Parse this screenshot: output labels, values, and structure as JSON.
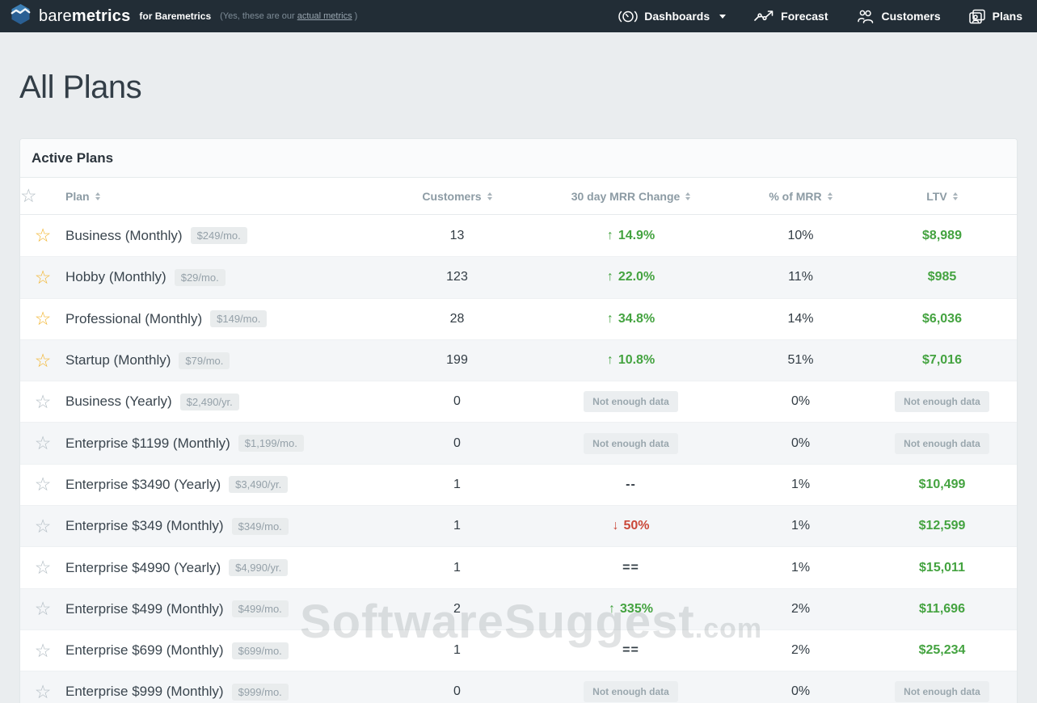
{
  "navbar": {
    "brand": {
      "bare": "bare",
      "metrics": "metrics",
      "for_text": "for Baremetrics",
      "note_prefix": "(Yes, these are our ",
      "note_link": "actual metrics",
      "note_suffix": " )"
    },
    "items": [
      {
        "label": "Dashboards",
        "icon": "dashboards-icon",
        "has_caret": true
      },
      {
        "label": "Forecast",
        "icon": "forecast-icon",
        "has_caret": false
      },
      {
        "label": "Customers",
        "icon": "customers-icon",
        "has_caret": false
      },
      {
        "label": "Plans",
        "icon": "plans-icon",
        "has_caret": false
      }
    ]
  },
  "page": {
    "title": "All Plans"
  },
  "card": {
    "title": "Active Plans"
  },
  "table": {
    "columns": [
      "Plan",
      "Customers",
      "30 day MRR Change",
      "% of MRR",
      "LTV"
    ],
    "not_enough_label": "Not enough data",
    "icons": {
      "up_arrow": "↑",
      "down_arrow": "↓",
      "star": "☆"
    },
    "colors": {
      "green": "#44a340",
      "red": "#ca4839",
      "star_on": "#f2b632",
      "star_off": "#b3bdc4"
    },
    "rows": [
      {
        "starred": true,
        "plan": "Business (Monthly)",
        "price": "$249/mo.",
        "customers": "13",
        "mrr": {
          "type": "up",
          "text": "14.9%"
        },
        "pct_mrr": "10%",
        "ltv": {
          "type": "value",
          "text": "$8,989"
        }
      },
      {
        "starred": true,
        "plan": "Hobby (Monthly)",
        "price": "$29/mo.",
        "customers": "123",
        "mrr": {
          "type": "up",
          "text": "22.0%"
        },
        "pct_mrr": "11%",
        "ltv": {
          "type": "value",
          "text": "$985"
        }
      },
      {
        "starred": true,
        "plan": "Professional (Monthly)",
        "price": "$149/mo.",
        "customers": "28",
        "mrr": {
          "type": "up",
          "text": "34.8%"
        },
        "pct_mrr": "14%",
        "ltv": {
          "type": "value",
          "text": "$6,036"
        }
      },
      {
        "starred": true,
        "plan": "Startup (Monthly)",
        "price": "$79/mo.",
        "customers": "199",
        "mrr": {
          "type": "up",
          "text": "10.8%"
        },
        "pct_mrr": "51%",
        "ltv": {
          "type": "value",
          "text": "$7,016"
        }
      },
      {
        "starred": false,
        "plan": "Business (Yearly)",
        "price": "$2,490/yr.",
        "customers": "0",
        "mrr": {
          "type": "nodata",
          "text": ""
        },
        "pct_mrr": "0%",
        "ltv": {
          "type": "nodata",
          "text": ""
        }
      },
      {
        "starred": false,
        "plan": "Enterprise $1199 (Monthly)",
        "price": "$1,199/mo.",
        "customers": "0",
        "mrr": {
          "type": "nodata",
          "text": ""
        },
        "pct_mrr": "0%",
        "ltv": {
          "type": "nodata",
          "text": ""
        }
      },
      {
        "starred": false,
        "plan": "Enterprise $3490 (Yearly)",
        "price": "$3,490/yr.",
        "customers": "1",
        "mrr": {
          "type": "flat",
          "text": "--"
        },
        "pct_mrr": "1%",
        "ltv": {
          "type": "value",
          "text": "$10,499"
        }
      },
      {
        "starred": false,
        "plan": "Enterprise $349 (Monthly)",
        "price": "$349/mo.",
        "customers": "1",
        "mrr": {
          "type": "down",
          "text": "50%"
        },
        "pct_mrr": "1%",
        "ltv": {
          "type": "value",
          "text": "$12,599"
        }
      },
      {
        "starred": false,
        "plan": "Enterprise $4990 (Yearly)",
        "price": "$4,990/yr.",
        "customers": "1",
        "mrr": {
          "type": "flat",
          "text": "=="
        },
        "pct_mrr": "1%",
        "ltv": {
          "type": "value",
          "text": "$15,011"
        }
      },
      {
        "starred": false,
        "plan": "Enterprise $499 (Monthly)",
        "price": "$499/mo.",
        "customers": "2",
        "mrr": {
          "type": "up",
          "text": "335%"
        },
        "pct_mrr": "2%",
        "ltv": {
          "type": "value",
          "text": "$11,696"
        }
      },
      {
        "starred": false,
        "plan": "Enterprise $699 (Monthly)",
        "price": "$699/mo.",
        "customers": "1",
        "mrr": {
          "type": "flat",
          "text": "=="
        },
        "pct_mrr": "2%",
        "ltv": {
          "type": "value",
          "text": "$25,234"
        }
      },
      {
        "starred": false,
        "plan": "Enterprise $999 (Monthly)",
        "price": "$999/mo.",
        "customers": "0",
        "mrr": {
          "type": "nodata",
          "text": ""
        },
        "pct_mrr": "0%",
        "ltv": {
          "type": "nodata",
          "text": ""
        }
      }
    ]
  },
  "watermark": {
    "text": "SoftwareSuggest",
    "suffix": ".com"
  }
}
